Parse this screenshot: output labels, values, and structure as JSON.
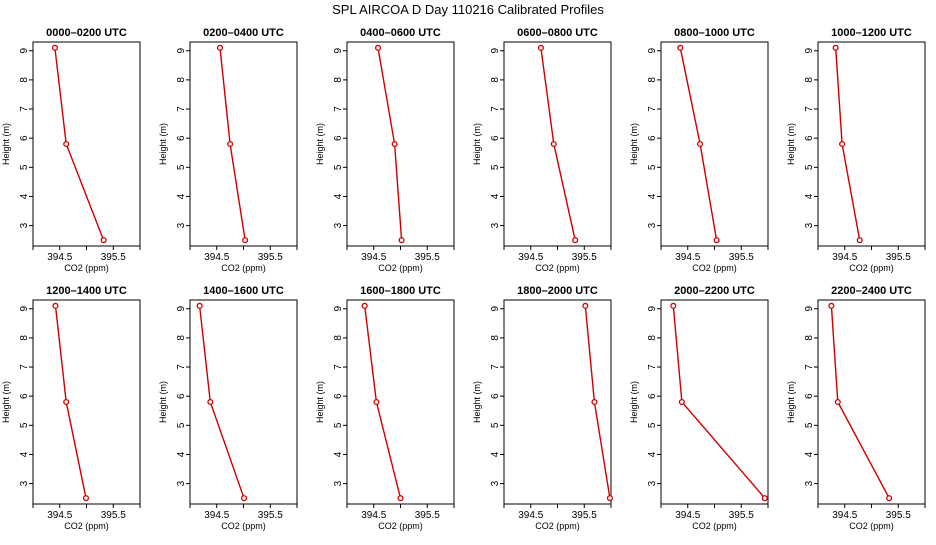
{
  "title": "SPL AIRCOA D  Day 110216  Calibrated Profiles",
  "colors": {
    "line": "#cc0000",
    "marker": "#cc0000",
    "axis": "#000000"
  },
  "chart_data": {
    "type": "line",
    "layout": "2 rows x 6 columns",
    "xlabel": "CO2 (ppm)",
    "ylabel": "Height (m)",
    "xlim": [
      394.0,
      396.0
    ],
    "ylim": [
      2.3,
      9.3
    ],
    "x_ticks": [
      394.5,
      395.5
    ],
    "x_ticks_unlabeled": [
      394.0,
      395.0,
      396.0
    ],
    "y_ticks": [
      3,
      4,
      5,
      6,
      7,
      8,
      9
    ],
    "panels": [
      {
        "title": "0000–0200 UTC",
        "points": [
          {
            "x": 394.41,
            "y": 9.1
          },
          {
            "x": 394.62,
            "y": 5.8
          },
          {
            "x": 395.32,
            "y": 2.5
          }
        ]
      },
      {
        "title": "0200–0400 UTC",
        "points": [
          {
            "x": 394.56,
            "y": 9.1
          },
          {
            "x": 394.75,
            "y": 5.8
          },
          {
            "x": 395.03,
            "y": 2.5
          }
        ]
      },
      {
        "title": "0400–0600 UTC",
        "points": [
          {
            "x": 394.58,
            "y": 9.1
          },
          {
            "x": 394.89,
            "y": 5.8
          },
          {
            "x": 395.02,
            "y": 2.5
          }
        ]
      },
      {
        "title": "0600–0800 UTC",
        "points": [
          {
            "x": 394.69,
            "y": 9.1
          },
          {
            "x": 394.93,
            "y": 5.8
          },
          {
            "x": 395.33,
            "y": 2.5
          }
        ]
      },
      {
        "title": "0800–1000 UTC",
        "points": [
          {
            "x": 394.36,
            "y": 9.1
          },
          {
            "x": 394.73,
            "y": 5.8
          },
          {
            "x": 395.04,
            "y": 2.5
          }
        ]
      },
      {
        "title": "1000–1200 UTC",
        "points": [
          {
            "x": 394.33,
            "y": 9.1
          },
          {
            "x": 394.45,
            "y": 5.8
          },
          {
            "x": 394.78,
            "y": 2.5
          }
        ]
      },
      {
        "title": "1200–1400 UTC",
        "points": [
          {
            "x": 394.42,
            "y": 9.1
          },
          {
            "x": 394.62,
            "y": 5.8
          },
          {
            "x": 394.99,
            "y": 2.5
          }
        ]
      },
      {
        "title": "1400–1600 UTC",
        "points": [
          {
            "x": 394.18,
            "y": 9.1
          },
          {
            "x": 394.38,
            "y": 5.8
          },
          {
            "x": 395.01,
            "y": 2.5
          }
        ]
      },
      {
        "title": "1600–1800 UTC",
        "points": [
          {
            "x": 394.33,
            "y": 9.1
          },
          {
            "x": 394.55,
            "y": 5.8
          },
          {
            "x": 395.0,
            "y": 2.5
          }
        ]
      },
      {
        "title": "1800–2000 UTC",
        "points": [
          {
            "x": 395.52,
            "y": 9.1
          },
          {
            "x": 395.69,
            "y": 5.8
          },
          {
            "x": 395.98,
            "y": 2.5
          }
        ]
      },
      {
        "title": "2000–2200 UTC",
        "points": [
          {
            "x": 394.23,
            "y": 9.1
          },
          {
            "x": 394.39,
            "y": 5.8
          },
          {
            "x": 395.94,
            "y": 2.5
          }
        ]
      },
      {
        "title": "2200–2400 UTC",
        "points": [
          {
            "x": 394.25,
            "y": 9.1
          },
          {
            "x": 394.37,
            "y": 5.8
          },
          {
            "x": 395.33,
            "y": 2.5
          }
        ]
      }
    ]
  }
}
